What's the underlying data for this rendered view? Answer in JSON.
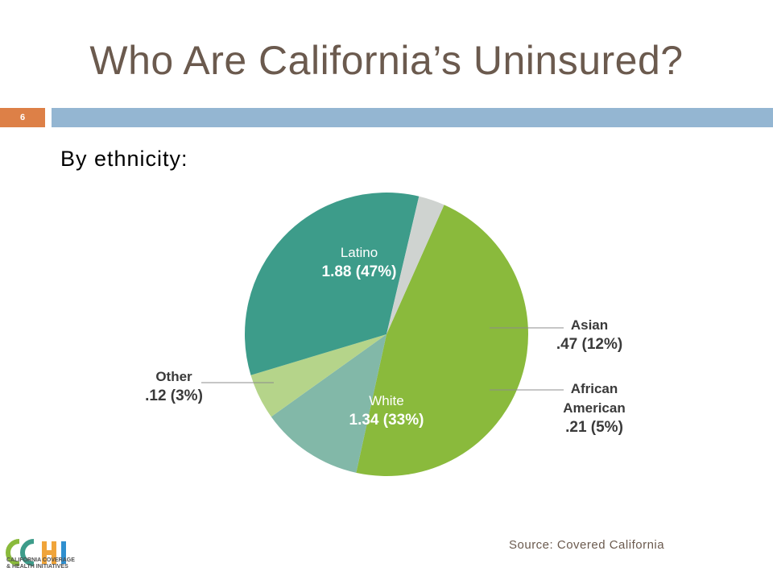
{
  "slide": {
    "title": "Who Are California’s Uninsured?",
    "slide_number": "6",
    "subtitle": "By ethnicity:",
    "source": "Source: Covered California",
    "logo_text": "CCHI",
    "logo_caption_line1": "CALIFORNIA COVERAGE",
    "logo_caption_line2": "& HEALTH INITIATIVES"
  },
  "colors": {
    "title": "#6b5a4e",
    "number_box": "#dd8047",
    "header_bar": "#94b6d2"
  },
  "chart_data": {
    "type": "pie",
    "slices": [
      {
        "name": "Latino",
        "value": 1.88,
        "value_label": "1.88 (47%)",
        "percent": 47,
        "color": "#8aba3c",
        "label_lines": [
          "Latino"
        ]
      },
      {
        "name": "Asian",
        "value": 0.47,
        "value_label": ".47 (12%)",
        "percent": 12,
        "color": "#82b8a8",
        "label_lines": [
          "Asian"
        ]
      },
      {
        "name": "African American",
        "value": 0.21,
        "value_label": ".21 (5%)",
        "percent": 5,
        "color": "#b5d48a",
        "label_lines": [
          "African",
          "American"
        ]
      },
      {
        "name": "White",
        "value": 1.34,
        "value_label": "1.34 (33%)",
        "percent": 33,
        "color": "#3d9c8a",
        "label_lines": [
          "White"
        ]
      },
      {
        "name": "Other",
        "value": 0.12,
        "value_label": ".12 (3%)",
        "percent": 3,
        "color": "#cfd3d0",
        "label_lines": [
          "Other"
        ]
      }
    ]
  }
}
